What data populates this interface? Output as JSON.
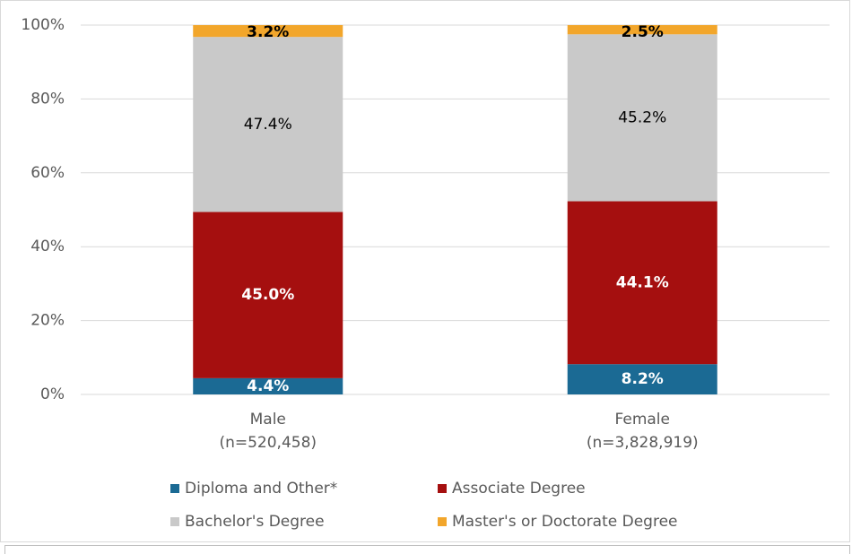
{
  "chart_data": {
    "type": "stacked_bar",
    "categories": [
      [
        "Male",
        "(n=520,458)"
      ],
      [
        "Female",
        "(n=3,828,919)"
      ]
    ],
    "series": [
      {
        "name": "Diploma and Other*",
        "color": "#1b6a94",
        "values": [
          4.4,
          8.2
        ],
        "value_labels": [
          "4.4%",
          "8.2%"
        ]
      },
      {
        "name": "Associate Degree",
        "color": "#a50f0f",
        "values": [
          45.0,
          44.1
        ],
        "value_labels": [
          "45.0%",
          "44.1%"
        ]
      },
      {
        "name": "Bachelor's Degree",
        "color": "#c9c9c9",
        "values": [
          47.4,
          45.2
        ],
        "value_labels": [
          "47.4%",
          "45.2%"
        ]
      },
      {
        "name": "Master's or Doctorate Degree",
        "color": "#f2a62b",
        "values": [
          3.2,
          2.5
        ],
        "value_labels": [
          "3.2%",
          "2.5%"
        ]
      }
    ],
    "ylim": [
      0,
      100
    ],
    "yticks": [
      {
        "value": 0,
        "label": "0%"
      },
      {
        "value": 20,
        "label": "20%"
      },
      {
        "value": 40,
        "label": "40%"
      },
      {
        "value": 60,
        "label": "60%"
      },
      {
        "value": 80,
        "label": "80%"
      },
      {
        "value": 100,
        "label": "100%"
      }
    ],
    "grid": true
  }
}
